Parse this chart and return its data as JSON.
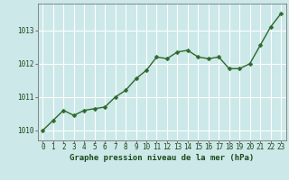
{
  "x": [
    0,
    1,
    2,
    3,
    4,
    5,
    6,
    7,
    8,
    9,
    10,
    11,
    12,
    13,
    14,
    15,
    16,
    17,
    18,
    19,
    20,
    21,
    22,
    23
  ],
  "y": [
    1010.0,
    1010.3,
    1010.6,
    1010.45,
    1010.6,
    1010.65,
    1010.7,
    1011.0,
    1011.2,
    1011.55,
    1011.8,
    1012.2,
    1012.15,
    1012.35,
    1012.4,
    1012.2,
    1012.15,
    1012.2,
    1011.85,
    1011.85,
    1012.0,
    1012.55,
    1013.1,
    1013.5
  ],
  "ylim": [
    1009.7,
    1013.8
  ],
  "yticks": [
    1010,
    1011,
    1012,
    1013
  ],
  "xticks": [
    0,
    1,
    2,
    3,
    4,
    5,
    6,
    7,
    8,
    9,
    10,
    11,
    12,
    13,
    14,
    15,
    16,
    17,
    18,
    19,
    20,
    21,
    22,
    23
  ],
  "line_color": "#2d6a2d",
  "marker_color": "#2d6a2d",
  "bg_color": "#cce8e8",
  "grid_color": "#ffffff",
  "xlabel": "Graphe pression niveau de la mer (hPa)",
  "xlabel_color": "#1a4a1a",
  "tick_color": "#1a4a1a",
  "label_fontsize": 6.5,
  "tick_fontsize": 5.5,
  "line_width": 1.0,
  "marker_size": 2.5
}
